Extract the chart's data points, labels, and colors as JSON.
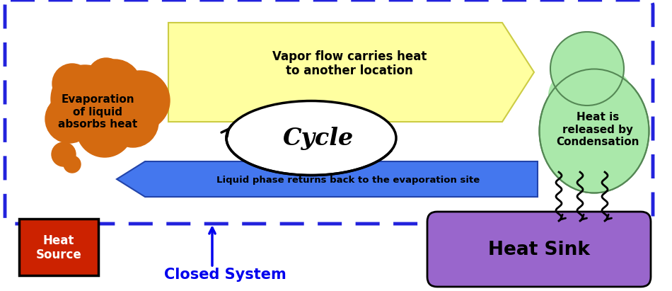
{
  "bg_color": "#ffffff",
  "dashed_border_color": "#2222dd",
  "cloud_color": "#d46a10",
  "cloud_text": "Evaporation\nof liquid\nabsorbs heat",
  "cloud_text_color": "#000000",
  "yellow_arrow_color": "#ffffa0",
  "yellow_arrow_edge": "#cccc44",
  "yellow_arrow_text": "Vapor flow carries heat\nto another location",
  "yellow_arrow_text_color": "#000000",
  "blue_arrow_color": "#4477ee",
  "blue_arrow_edge": "#2244aa",
  "blue_arrow_text": "Liquid phase returns back to the evaporation site",
  "blue_arrow_text_color": "#000000",
  "cycle_ellipse_color": "#ffffff",
  "cycle_ellipse_edge": "#000000",
  "cycle_text": "Cycle",
  "green_blob_color": "#aae8aa",
  "green_blob_edge": "#558855",
  "green_blob_text": "Heat is\nreleased by\nCondensation",
  "green_blob_text_color": "#000000",
  "heat_source_color": "#cc2200",
  "heat_source_edge": "#000000",
  "heat_source_text": "Heat\nSource",
  "heat_source_text_color": "#ffffff",
  "heat_sink_color": "#9966cc",
  "heat_sink_edge": "#000000",
  "heat_sink_text": "Heat Sink",
  "heat_sink_text_color": "#000000",
  "closed_system_text": "Closed System",
  "closed_system_color": "#0000ee",
  "figsize": [
    9.5,
    4.11
  ],
  "dpi": 100
}
